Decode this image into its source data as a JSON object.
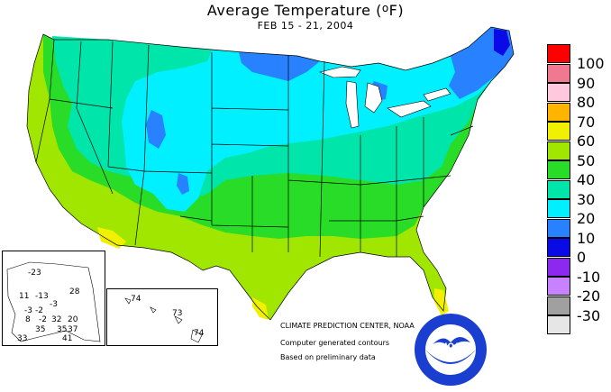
{
  "title": {
    "main": "Average Temperature (",
    "unit": "o",
    "unit_after": "F)"
  },
  "subtitle": "FEB 15 - 21, 2004",
  "legend": {
    "items": [
      {
        "label": "100",
        "color": "#ff0000"
      },
      {
        "label": "90",
        "color": "#f07890"
      },
      {
        "label": "80",
        "color": "#ffc8dc"
      },
      {
        "label": "70",
        "color": "#ffb400"
      },
      {
        "label": "60",
        "color": "#f0f000"
      },
      {
        "label": "50",
        "color": "#a0e600"
      },
      {
        "label": "40",
        "color": "#28dc28"
      },
      {
        "label": "30",
        "color": "#00e6aa"
      },
      {
        "label": "20",
        "color": "#00f0ff"
      },
      {
        "label": "10",
        "color": "#2882ff"
      },
      {
        "label": "0",
        "color": "#0a0ae6"
      },
      {
        "label": "-10",
        "color": "#8c28f0"
      },
      {
        "label": "-20",
        "color": "#c882ff"
      },
      {
        "label": "-30",
        "color": "#a0a0a0"
      }
    ],
    "extra_color": "#e6e6e6"
  },
  "credits": {
    "center": "CLIMATE PREDICTION CENTER, NOAA",
    "line2": "Computer generated contours",
    "line3": "Based on preliminary data"
  },
  "alaska_values": [
    "-23",
    "11",
    "-13",
    "28",
    "-3",
    "-3",
    "-2",
    "8",
    "-2",
    "32",
    "20",
    "35",
    "35",
    "37",
    "41",
    "33"
  ],
  "hawaii_values": [
    "74",
    "73",
    "74"
  ],
  "noaa_logo": {
    "text": "NOAA"
  }
}
